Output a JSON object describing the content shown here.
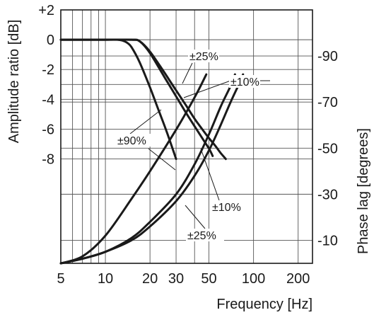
{
  "chart_data": {
    "type": "line",
    "xlabel": "Frequency [Hz]",
    "ylabel_left": "Amplitude ratio [dB]",
    "ylabel_right": "Phase lag [degrees]",
    "x_scale": "log",
    "xlim": [
      5,
      250
    ],
    "ylim_left": [
      -15,
      2
    ],
    "ylim_right": [
      0,
      110
    ],
    "grid": true,
    "x_ticks": [
      5,
      10,
      20,
      30,
      50,
      100,
      200
    ],
    "x_tick_labels": [
      "5",
      "10",
      "20",
      "30",
      "50",
      "100",
      "200"
    ],
    "y_left_ticks": [
      2,
      0,
      -2,
      -4,
      -6,
      -8
    ],
    "y_left_tick_labels": [
      "+2",
      "0",
      "-2",
      "-4",
      "-6",
      "-8"
    ],
    "y_right_ticks": [
      90,
      70,
      50,
      30,
      10
    ],
    "y_right_tick_labels": [
      "-90",
      "-70",
      "-50",
      "-30",
      "-10"
    ],
    "series": [
      {
        "axis": "left",
        "x": [
          5,
          8,
          10,
          12,
          13,
          14,
          15,
          17,
          20,
          23,
          26,
          30
        ],
        "y": [
          0,
          0,
          0,
          0,
          -0.05,
          -0.2,
          -0.5,
          -1.5,
          -3.2,
          -4.8,
          -6.2,
          -8
        ]
      },
      {
        "axis": "left",
        "x": [
          5,
          10,
          15,
          17,
          20,
          25,
          30,
          35,
          40,
          45,
          50,
          55,
          60,
          65
        ],
        "y": [
          0,
          0,
          0,
          -0.1,
          -0.8,
          -2.2,
          -3.4,
          -4.4,
          -5.3,
          -6.0,
          -6.6,
          -7.1,
          -7.6,
          -8
        ]
      },
      {
        "axis": "left",
        "x": [
          5,
          10,
          15,
          17,
          20,
          25,
          30,
          35,
          40,
          45,
          50,
          53
        ],
        "y": [
          0,
          0,
          0,
          -0.1,
          -0.9,
          -2.5,
          -3.8,
          -4.9,
          -5.8,
          -6.6,
          -7.3,
          -7.8
        ]
      },
      {
        "axis": "right",
        "x": [
          5,
          7,
          10,
          15,
          20,
          30,
          40,
          48
        ],
        "y": [
          0,
          3,
          12,
          28,
          40,
          58,
          72,
          82
        ]
      },
      {
        "axis": "right",
        "x": [
          5,
          7,
          10,
          15,
          20,
          30,
          40,
          50,
          60,
          70,
          75
        ],
        "y": [
          0,
          2,
          5,
          11,
          18,
          30,
          43,
          56,
          68,
          77,
          82
        ]
      },
      {
        "axis": "right",
        "x": [
          5,
          7,
          10,
          15,
          20,
          30,
          40,
          50,
          60,
          70,
          80,
          85
        ],
        "y": [
          0,
          2,
          5,
          10,
          16,
          27,
          38,
          49,
          60,
          70,
          78,
          82
        ]
      }
    ],
    "annotations": [
      {
        "text": "±25%"
      },
      {
        "text": "±10%"
      },
      {
        "text": "±90%"
      },
      {
        "text": "±10%"
      },
      {
        "text": "±25%"
      }
    ]
  }
}
